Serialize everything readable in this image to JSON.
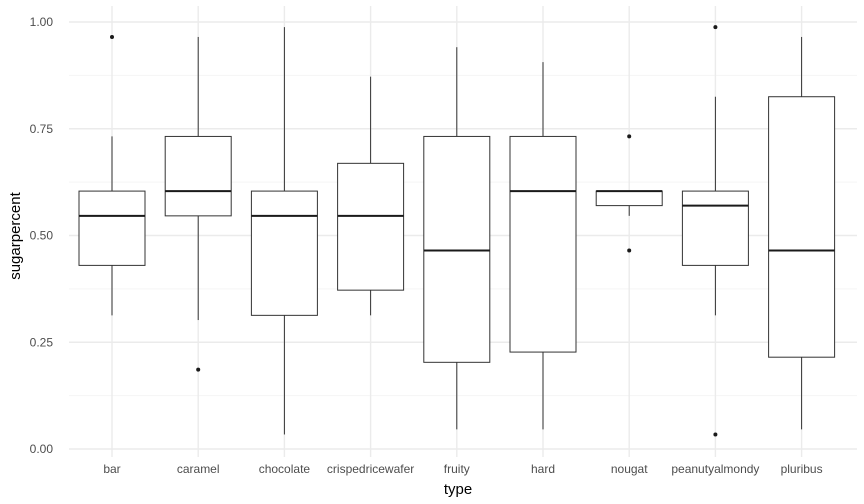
{
  "chart_data": {
    "type": "boxplot",
    "xlabel": "type",
    "ylabel": "sugarpercent",
    "ylim": [
      0,
      1
    ],
    "yticks": [
      0,
      0.25,
      0.5,
      0.75,
      1
    ],
    "ytick_labels": [
      "0.00",
      "0.25",
      "0.50",
      "0.75",
      "1.00"
    ],
    "grid": true,
    "theme": "minimal",
    "colors": {
      "grid_major": "#ebebeb",
      "grid_minor": "#f5f5f5",
      "box": "#333333",
      "median": "#1a1a1a",
      "text": "#4d4d4d"
    },
    "categories": [
      "bar",
      "caramel",
      "chocolate",
      "crispedricewafer",
      "fruity",
      "hard",
      "nougat",
      "peanutyalmondy",
      "pluribus"
    ],
    "boxes": [
      {
        "category": "bar",
        "whisker_low": 0.313,
        "q1": 0.43,
        "median": 0.546,
        "q3": 0.604,
        "whisker_high": 0.732,
        "outliers": [
          0.965
        ]
      },
      {
        "category": "caramel",
        "whisker_low": 0.302,
        "q1": 0.546,
        "median": 0.604,
        "q3": 0.732,
        "whisker_high": 0.965,
        "outliers": [
          0.186
        ]
      },
      {
        "category": "chocolate",
        "whisker_low": 0.034,
        "q1": 0.313,
        "median": 0.546,
        "q3": 0.604,
        "whisker_high": 0.988,
        "outliers": []
      },
      {
        "category": "crispedricewafer",
        "whisker_low": 0.313,
        "q1": 0.372,
        "median": 0.546,
        "q3": 0.669,
        "whisker_high": 0.872,
        "outliers": []
      },
      {
        "category": "fruity",
        "whisker_low": 0.046,
        "q1": 0.203,
        "median": 0.465,
        "q3": 0.732,
        "whisker_high": 0.941,
        "outliers": []
      },
      {
        "category": "hard",
        "whisker_low": 0.046,
        "q1": 0.227,
        "median": 0.604,
        "q3": 0.732,
        "whisker_high": 0.906,
        "outliers": []
      },
      {
        "category": "nougat",
        "whisker_low": 0.546,
        "q1": 0.57,
        "median": 0.604,
        "q3": 0.604,
        "whisker_high": 0.604,
        "outliers": [
          0.465,
          0.732
        ]
      },
      {
        "category": "peanutyalmondy",
        "whisker_low": 0.313,
        "q1": 0.43,
        "median": 0.57,
        "q3": 0.604,
        "whisker_high": 0.825,
        "outliers": [
          0.034,
          0.988
        ]
      },
      {
        "category": "pluribus",
        "whisker_low": 0.046,
        "q1": 0.215,
        "median": 0.465,
        "q3": 0.825,
        "whisker_high": 0.965,
        "outliers": []
      }
    ]
  }
}
